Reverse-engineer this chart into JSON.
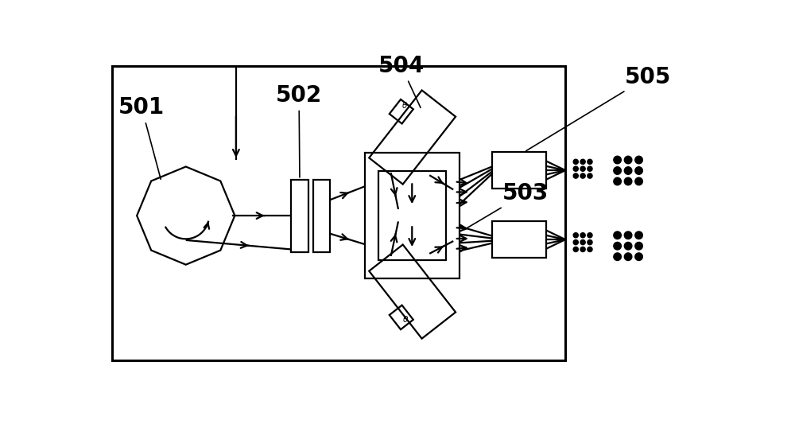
{
  "bg_color": "#ffffff",
  "line_color": "#000000",
  "figsize": [
    10.0,
    5.33
  ],
  "dpi": 100,
  "lw": 1.6,
  "lw_border": 2.2,
  "label_fontsize": 20,
  "arrow_style": "->"
}
